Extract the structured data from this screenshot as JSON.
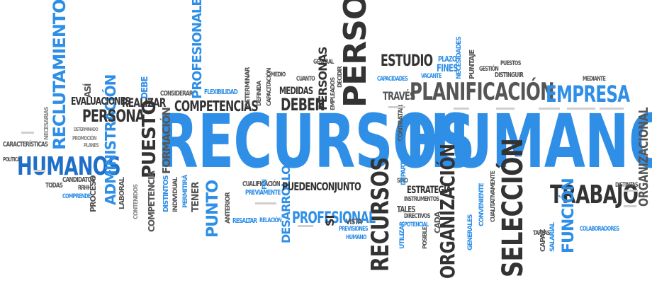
{
  "colors": {
    "blue": "#2f8fe6",
    "light_blue": "#4aa3ee",
    "dark": "#333333",
    "gray": "#8a8a8a"
  },
  "words": {
    "recursos_main": "RECURSOS",
    "humanos_main": "HUMANOS",
    "personal": "PERSONAL",
    "planificacion": "PLANIFICACIÓN",
    "empresa": "EMPRESA",
    "estudio": "ESTUDIO",
    "trabajo": "TRABAJO",
    "seleccion": "SELECCIÓN",
    "recursos_vertical": "RECURSOS",
    "organizacion": "ORGANIZACIÓN",
    "organizacional": "ORGANIZACIONAL",
    "humanos_left": "HUMANOS",
    "reclutamiento": "RECLUTAMIENTO",
    "administracion": "ADMINISTRACIÓN",
    "persona": "PERSONA",
    "puesto": "PUESTO",
    "competencias": "COMPETENCIAS",
    "deben": "DEBEN",
    "profesional": "PROFESIONAL",
    "pueden": "PUEDEN",
    "conjunto": "CONJUNTO",
    "desarrollo": "DESARROLLO",
    "estrategia": "ESTRATEGIA",
    "funcion": "FUNCIÓN",
    "punto": "PUNTO",
    "profesionales": "PROFESIONALES",
    "evaluaciones": "EVALUACIONES",
    "realizar": "REALIZAR",
    "formacion": "FORMACIÓN",
    "competencia": "COMPETENCIA",
    "medidas": "MEDIDAS",
    "personas": "PERSONAS",
    "traves": "TRAVÉS",
    "plazo": "PLAZO",
    "fines": "FINES",
    "puntaje": "PUNTAJE",
    "puestos": "PUESTOS",
    "gestion": "GESTIÓN",
    "distinguir": "DISTINGUIR",
    "mediante": "MEDIANTE",
    "capacidades": "CAPACIDADES",
    "vacante": "VACANTE",
    "necesidades": "NECESIDADES",
    "general": "GENERAL",
    "cuanto": "CUANTO",
    "medio": "MEDIO",
    "flexibilidad": "FLEXIBILIDAD",
    "considerar": "CONSIDERAR",
    "debe": "DEBE",
    "asi": "ASÍ",
    "caracteristicas": "CARACTERÍSTICAS",
    "politica": "POLÍTICA",
    "todas": "TODAS",
    "candidatos": "CANDIDATOS",
    "rrhh": "RRHH",
    "comprende": "COMPRENDE",
    "proceso": "PROCESO",
    "laboral": "LABORAL",
    "tener": "TENER",
    "cualificacion": "CUALIFICACIÓN",
    "previamente": "PREVIAMENTE",
    "resaltar": "RESALTAR",
    "relacion": "RELACIÓN",
    "anterior": "ANTERIOR",
    "vista": "VISTA",
    "previsiones": "PREVISIONES",
    "humano": "HUMANO",
    "si": "SI",
    "sino": "SINO",
    "tales": "TALES",
    "instrumentos": "INSTRUMENTOS",
    "directivos": "DIRECTIVOS",
    "potencial": "POTENCIAL",
    "cada": "CADA",
    "utilizar": "UTILIZAR",
    "contratar": "CONTRATAR",
    "departamento": "DEPARTAMENTO",
    "convenientes": "CONVENIENTE",
    "generales": "GENERALES",
    "tareas": "TAREAS",
    "capaz": "CAPAZ",
    "salarial": "SALARIAL",
    "colaboradores": "COLABORADORES",
    "distintas": "DISTINTAS",
    "distintos": "DISTINTOS",
    "individual": "INDIVIDUAL",
    "permitira": "PERMITIRÁ",
    "capacitacion": "CAPACITACIÓN",
    "empleados": "EMPLEADOS",
    "decidir": "DECIDIR",
    "fin": "FIN",
    "necesarias": "NECESARIAS",
    "determinado": "DETERMINADO",
    "promocion": "PROMOCIÓN",
    "planes": "PLANES",
    "definida": "DEFINIDA",
    "determinar": "DETERMINAR",
    "cualitativamente": "CUALITATIVAMENTE",
    "posible": "POSIBLE",
    "contenidos": "CONTENIDOS"
  }
}
